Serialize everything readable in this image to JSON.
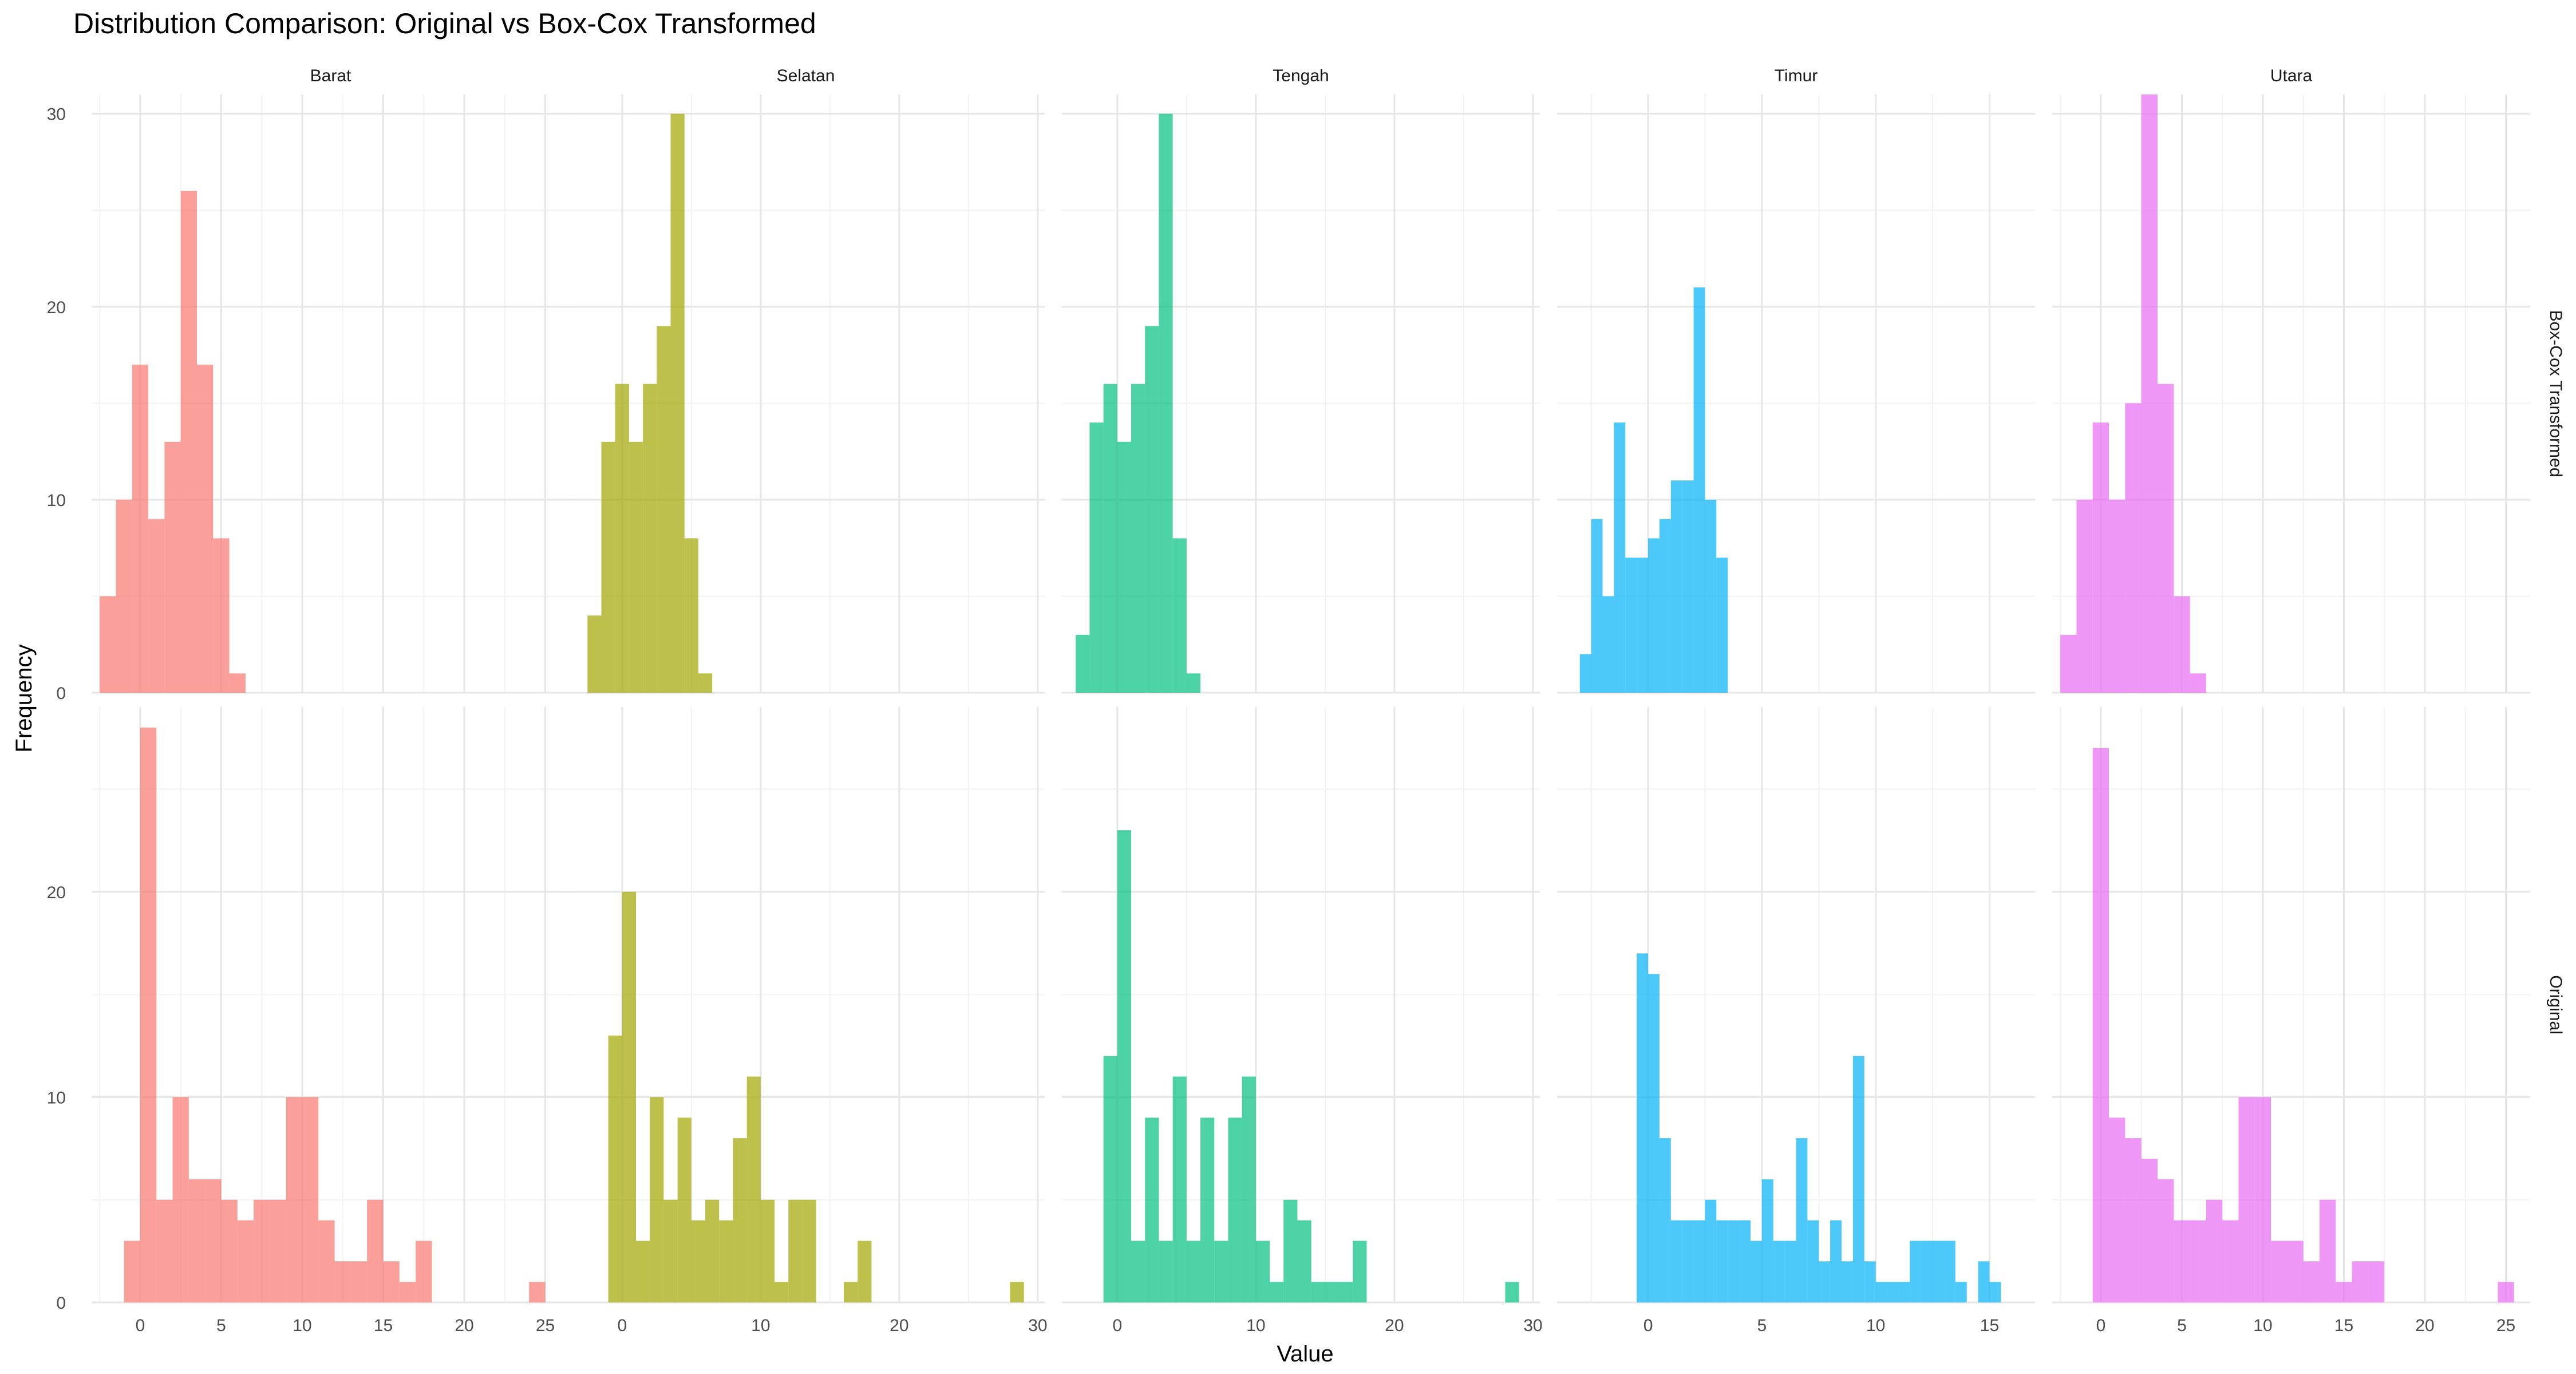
{
  "title": "Distribution Comparison: Original vs Box-Cox Transformed",
  "xlabel": "Value",
  "ylabel": "Frequency",
  "chart_data": {
    "type": "histogram (faceted bar)",
    "title": "Distribution Comparison: Original vs Box-Cox Transformed",
    "xlabel": "Value",
    "ylabel": "Frequency",
    "grid": true,
    "legend": "none",
    "column_facets": [
      "Barat",
      "Selatan",
      "Tengah",
      "Timur",
      "Utara"
    ],
    "row_facets": [
      "Box-Cox Transformed",
      "Original"
    ],
    "series_colors": {
      "Barat": "#F8766D",
      "Selatan": "#A3A500",
      "Tengah": "#00BF7D",
      "Timur": "#00B0F6",
      "Utara": "#E76BF3"
    },
    "panels": [
      {
        "row": "Box-Cox Transformed",
        "y_ticks": [
          0,
          10,
          20,
          30
        ],
        "ylim": [
          0,
          31
        ],
        "facets": [
          {
            "facet": "Barat",
            "xlim": [
              -3,
              26.5
            ],
            "x_ticks": [
              0,
              5,
              10,
              15,
              20,
              25
            ],
            "bins": [
              [
                -2.5,
                -1.5,
                5
              ],
              [
                -1.5,
                -0.5,
                10
              ],
              [
                -0.5,
                0.5,
                17
              ],
              [
                0.5,
                1.5,
                9
              ],
              [
                1.5,
                2.5,
                13
              ],
              [
                2.5,
                3.5,
                26
              ],
              [
                3.5,
                4.5,
                17
              ],
              [
                4.5,
                5.5,
                8
              ],
              [
                5.5,
                6.5,
                1
              ]
            ]
          },
          {
            "facet": "Selatan",
            "xlim": [
              -4,
              30.5
            ],
            "x_ticks": [
              0,
              10,
              20,
              30
            ],
            "bins": [
              [
                -2.5,
                -1.5,
                4
              ],
              [
                -1.5,
                -0.5,
                13
              ],
              [
                -0.5,
                0.5,
                16
              ],
              [
                0.5,
                1.5,
                13
              ],
              [
                1.5,
                2.5,
                16
              ],
              [
                2.5,
                3.5,
                19
              ],
              [
                3.5,
                4.5,
                30
              ],
              [
                4.5,
                5.5,
                8
              ],
              [
                5.5,
                6.5,
                1
              ]
            ]
          },
          {
            "facet": "Tengah",
            "xlim": [
              -4,
              30.5
            ],
            "x_ticks": [
              0,
              10,
              20,
              30
            ],
            "bins": [
              [
                -3,
                -2,
                3
              ],
              [
                -2,
                -1,
                14
              ],
              [
                -1,
                0,
                16
              ],
              [
                0,
                1,
                13
              ],
              [
                1,
                2,
                16
              ],
              [
                2,
                3,
                19
              ],
              [
                3,
                4,
                30
              ],
              [
                4,
                5,
                8
              ],
              [
                5,
                6,
                1
              ]
            ]
          },
          {
            "facet": "Timur",
            "xlim": [
              -4,
              17
            ],
            "x_ticks": [
              0,
              5,
              10,
              15
            ],
            "bins": [
              [
                -3,
                -2.5,
                2
              ],
              [
                -2.5,
                -2,
                9
              ],
              [
                -2,
                -1.5,
                5
              ],
              [
                -1.5,
                -1,
                14
              ],
              [
                -1,
                -0.5,
                7
              ],
              [
                -0.5,
                0,
                7
              ],
              [
                0,
                0.5,
                8
              ],
              [
                0.5,
                1,
                9
              ],
              [
                1,
                1.5,
                11
              ],
              [
                1.5,
                2,
                11
              ],
              [
                2,
                2.5,
                21
              ],
              [
                2.5,
                3,
                10
              ],
              [
                3,
                3.5,
                7
              ]
            ]
          },
          {
            "facet": "Utara",
            "xlim": [
              -3,
              26.5
            ],
            "x_ticks": [
              0,
              5,
              10,
              15,
              20,
              25
            ],
            "bins": [
              [
                -2.5,
                -1.5,
                3
              ],
              [
                -1.5,
                -0.5,
                10
              ],
              [
                -0.5,
                0.5,
                14
              ],
              [
                0.5,
                1.5,
                10
              ],
              [
                1.5,
                2.5,
                15
              ],
              [
                2.5,
                3.5,
                31
              ],
              [
                3.5,
                4.5,
                16
              ],
              [
                4.5,
                5.5,
                5
              ],
              [
                5.5,
                6.5,
                1
              ]
            ]
          }
        ]
      },
      {
        "row": "Original",
        "y_ticks": [
          0,
          10,
          20
        ],
        "ylim": [
          0,
          29
        ],
        "facets": [
          {
            "facet": "Barat",
            "xlim": [
              -3,
              26.5
            ],
            "x_ticks": [
              0,
              5,
              10,
              15,
              20,
              25
            ],
            "bins": [
              [
                -1,
                0,
                3
              ],
              [
                0,
                1,
                28
              ],
              [
                1,
                2,
                5
              ],
              [
                2,
                3,
                10
              ],
              [
                3,
                4,
                6
              ],
              [
                4,
                5,
                6
              ],
              [
                5,
                6,
                5
              ],
              [
                6,
                7,
                4
              ],
              [
                7,
                8,
                5
              ],
              [
                8,
                9,
                5
              ],
              [
                9,
                10,
                10
              ],
              [
                10,
                11,
                10
              ],
              [
                11,
                12,
                4
              ],
              [
                12,
                13,
                2
              ],
              [
                13,
                14,
                2
              ],
              [
                14,
                15,
                5
              ],
              [
                15,
                16,
                2
              ],
              [
                16,
                17,
                1
              ],
              [
                17,
                18,
                3
              ],
              [
                24,
                25,
                1
              ]
            ]
          },
          {
            "facet": "Selatan",
            "xlim": [
              -4,
              30.5
            ],
            "x_ticks": [
              0,
              10,
              20,
              30
            ],
            "bins": [
              [
                -1,
                0,
                13
              ],
              [
                0,
                1,
                20
              ],
              [
                1,
                2,
                3
              ],
              [
                2,
                3,
                10
              ],
              [
                3,
                4,
                5
              ],
              [
                4,
                5,
                9
              ],
              [
                5,
                6,
                4
              ],
              [
                6,
                7,
                5
              ],
              [
                7,
                8,
                4
              ],
              [
                8,
                9,
                8
              ],
              [
                9,
                10,
                11
              ],
              [
                10,
                11,
                5
              ],
              [
                11,
                12,
                1
              ],
              [
                12,
                13,
                5
              ],
              [
                13,
                14,
                5
              ],
              [
                16,
                17,
                1
              ],
              [
                17,
                18,
                3
              ],
              [
                28,
                29,
                1
              ]
            ]
          },
          {
            "facet": "Tengah",
            "xlim": [
              -4,
              30.5
            ],
            "x_ticks": [
              0,
              10,
              20,
              30
            ],
            "bins": [
              [
                -1,
                0,
                12
              ],
              [
                0,
                1,
                23
              ],
              [
                1,
                2,
                3
              ],
              [
                2,
                3,
                9
              ],
              [
                3,
                4,
                3
              ],
              [
                4,
                5,
                11
              ],
              [
                5,
                6,
                3
              ],
              [
                6,
                7,
                9
              ],
              [
                7,
                8,
                3
              ],
              [
                8,
                9,
                9
              ],
              [
                9,
                10,
                11
              ],
              [
                10,
                11,
                3
              ],
              [
                11,
                12,
                1
              ],
              [
                12,
                13,
                5
              ],
              [
                13,
                14,
                4
              ],
              [
                14,
                15,
                1
              ],
              [
                15,
                16,
                1
              ],
              [
                16,
                17,
                1
              ],
              [
                17,
                18,
                3
              ],
              [
                28,
                29,
                1
              ]
            ]
          },
          {
            "facet": "Timur",
            "xlim": [
              -4,
              17
            ],
            "x_ticks": [
              0,
              5,
              10,
              15
            ],
            "bins": [
              [
                -0.5,
                0,
                17
              ],
              [
                0,
                0.5,
                16
              ],
              [
                0.5,
                1,
                8
              ],
              [
                1,
                1.5,
                4
              ],
              [
                1.5,
                2,
                4
              ],
              [
                2,
                2.5,
                4
              ],
              [
                2.5,
                3,
                5
              ],
              [
                3,
                3.5,
                4
              ],
              [
                3.5,
                4,
                4
              ],
              [
                4,
                4.5,
                4
              ],
              [
                4.5,
                5,
                3
              ],
              [
                5,
                5.5,
                6
              ],
              [
                5.5,
                6,
                3
              ],
              [
                6,
                6.5,
                3
              ],
              [
                6.5,
                7,
                8
              ],
              [
                7,
                7.5,
                4
              ],
              [
                7.5,
                8,
                2
              ],
              [
                8,
                8.5,
                4
              ],
              [
                8.5,
                9,
                2
              ],
              [
                9,
                9.5,
                12
              ],
              [
                9.5,
                10,
                2
              ],
              [
                10,
                10.5,
                1
              ],
              [
                10.5,
                11,
                1
              ],
              [
                11,
                11.5,
                1
              ],
              [
                11.5,
                12,
                3
              ],
              [
                12,
                12.5,
                3
              ],
              [
                12.5,
                13,
                3
              ],
              [
                13,
                13.5,
                3
              ],
              [
                13.5,
                14,
                1
              ],
              [
                14.5,
                15,
                2
              ],
              [
                15,
                15.5,
                1
              ]
            ]
          },
          {
            "facet": "Utara",
            "xlim": [
              -3,
              26.5
            ],
            "x_ticks": [
              0,
              5,
              10,
              15,
              20,
              25
            ],
            "bins": [
              [
                -0.5,
                0.5,
                27
              ],
              [
                0.5,
                1.5,
                9
              ],
              [
                1.5,
                2.5,
                8
              ],
              [
                2.5,
                3.5,
                7
              ],
              [
                3.5,
                4.5,
                6
              ],
              [
                4.5,
                5.5,
                4
              ],
              [
                5.5,
                6.5,
                4
              ],
              [
                6.5,
                7.5,
                5
              ],
              [
                7.5,
                8.5,
                4
              ],
              [
                8.5,
                9.5,
                10
              ],
              [
                9.5,
                10.5,
                10
              ],
              [
                10.5,
                11.5,
                3
              ],
              [
                11.5,
                12.5,
                3
              ],
              [
                12.5,
                13.5,
                2
              ],
              [
                13.5,
                14.5,
                5
              ],
              [
                14.5,
                15.5,
                1
              ],
              [
                15.5,
                16.5,
                2
              ],
              [
                16.5,
                17.5,
                2
              ],
              [
                24.5,
                25.5,
                1
              ]
            ]
          }
        ]
      }
    ]
  }
}
